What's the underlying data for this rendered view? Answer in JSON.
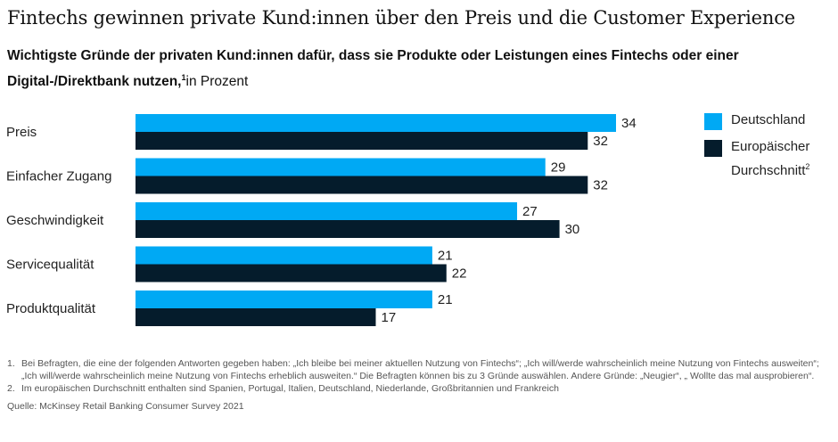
{
  "title": "Fintechs gewinnen private Kund:innen über den Preis und die Customer Experience",
  "subtitle": {
    "bold": "Wichtigste Gründe der privaten Kund:innen dafür, dass sie Produkte oder Leistungen eines Fintechs oder einer Digital-/Direktbank nutzen,",
    "sup": "1",
    "light": "in Prozent"
  },
  "legend": [
    {
      "label": "Deutschland",
      "sup": "",
      "color": "#00A9F4"
    },
    {
      "label": "Europäischer Durchschnitt",
      "sup": "2",
      "color": "#051C2C"
    }
  ],
  "chart_data": {
    "type": "bar",
    "orientation": "horizontal",
    "title": "Fintechs gewinnen private Kund:innen über den Preis und die Customer Experience",
    "xlabel": "",
    "ylabel": "",
    "unit": "Prozent",
    "xlim": [
      0,
      34
    ],
    "grid": false,
    "legend_position": "top-right",
    "categories": [
      "Preis",
      "Einfacher Zugang",
      "Geschwindigkeit",
      "Servicequalität",
      "Produktqualität"
    ],
    "series": [
      {
        "name": "Deutschland",
        "color": "#00A9F4",
        "values": [
          34,
          29,
          27,
          21,
          21
        ]
      },
      {
        "name": "Europäischer Durchschnitt",
        "color": "#051C2C",
        "values": [
          32,
          32,
          30,
          22,
          17
        ]
      }
    ]
  },
  "footnotes": [
    {
      "num": "1.",
      "text": "Bei Befragten, die eine der folgenden Antworten gegeben haben: „Ich bleibe bei meiner aktuellen Nutzung von Fintechs“; „Ich will/werde wahrscheinlich meine Nutzung von Fintechs ausweiten“; „Ich will/werde wahrscheinlich meine Nutzung von Fintechs erheblich ausweiten.“ Die Befragten können bis zu 3 Gründe auswählen. Andere Gründe: „Neugier“, „ Wollte das mal ausprobieren“."
    },
    {
      "num": "2.",
      "text": "Im europäischen Durchschnitt enthalten sind Spanien, Portugal, Italien, Deutschland, Niederlande, Großbritannien und Frankreich"
    }
  ],
  "source": "Quelle: McKinsey Retail Banking Consumer Survey 2021"
}
